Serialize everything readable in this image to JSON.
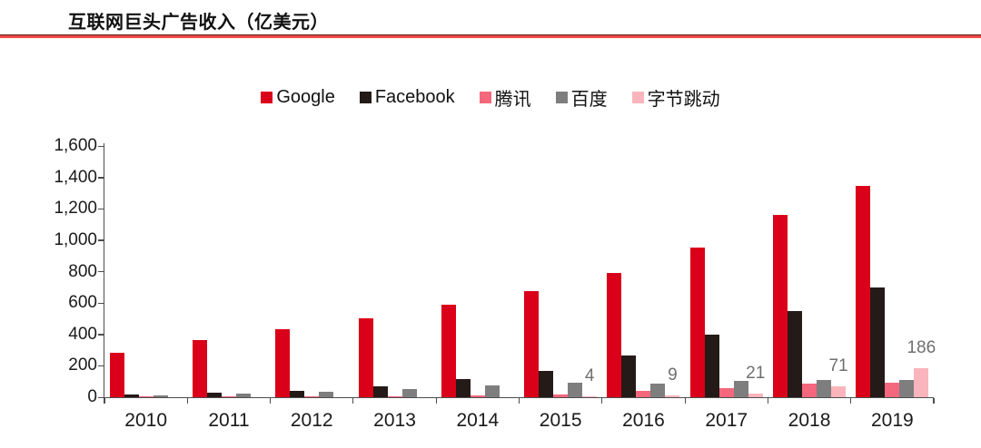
{
  "title": "互联网巨头广告收入（亿美元）",
  "accent_color": "#ee4947",
  "chart_data": {
    "type": "bar",
    "title": "互联网巨头广告收入（亿美元）",
    "categories": [
      "2010",
      "2011",
      "2012",
      "2013",
      "2014",
      "2015",
      "2016",
      "2017",
      "2018",
      "2019"
    ],
    "series": [
      {
        "key": "google",
        "name": "Google",
        "color": "#db0019",
        "values": [
          282,
          365,
          436,
          505,
          591,
          674,
          793,
          954,
          1163,
          1348
        ]
      },
      {
        "key": "facebook",
        "name": "Facebook",
        "color": "#241a17",
        "values": [
          19,
          31,
          43,
          70,
          115,
          170,
          268,
          399,
          550,
          697
        ]
      },
      {
        "key": "tencent",
        "name": "腾讯",
        "color": "#f4677d",
        "values": [
          2,
          3,
          5,
          8,
          13,
          20,
          38,
          55,
          87,
          90
        ]
      },
      {
        "key": "baidu",
        "name": "百度",
        "color": "#7e7e7e",
        "values": [
          12,
          22,
          35,
          50,
          78,
          92,
          86,
          104,
          110,
          107
        ]
      },
      {
        "key": "bytedance",
        "name": "字节跳动",
        "color": "#f9b5bb",
        "values": [
          null,
          null,
          null,
          null,
          null,
          4,
          9,
          21,
          71,
          186
        ],
        "data_labels": [
          null,
          null,
          null,
          null,
          null,
          "4",
          "9",
          "21",
          "71",
          "186"
        ]
      }
    ],
    "ylim": [
      0,
      1600
    ],
    "yticks": [
      "0",
      "200",
      "400",
      "600",
      "800",
      "1,000",
      "1,200",
      "1,400",
      "1,600"
    ],
    "ytick_values": [
      0,
      200,
      400,
      600,
      800,
      1000,
      1200,
      1400,
      1600
    ],
    "xlabel": "",
    "ylabel": "",
    "grid": false,
    "legend_position": "top",
    "data_label_color": "#6f6f6f",
    "axis_color": "#4d4d4d"
  }
}
